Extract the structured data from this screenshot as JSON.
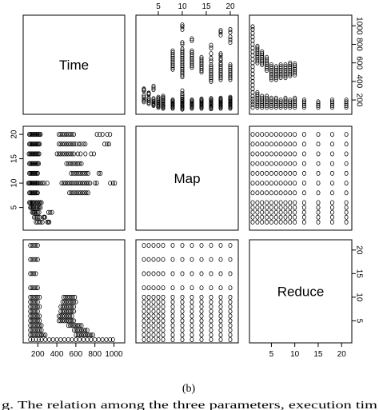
{
  "caption": "(b)",
  "footer_fragment": "g.   The relation among the three parameters, execution tim",
  "chart_data": {
    "type": "scatter",
    "variables": [
      "Time",
      "Map",
      "Reduce"
    ],
    "ranges": {
      "Time": [
        80,
        1080
      ],
      "Map": [
        1,
        21
      ],
      "Reduce": [
        1,
        21.5
      ]
    },
    "ticks": {
      "Time": [
        200,
        400,
        600,
        800,
        1000
      ],
      "Map": [
        5,
        10,
        15,
        20
      ],
      "Reduce": [
        5,
        10,
        15,
        20
      ]
    },
    "tick_labels": {
      "top": [
        "5",
        "10",
        "15",
        "20"
      ],
      "right_top": [
        "200",
        "400",
        "600",
        "800",
        "1000"
      ],
      "left_middle": [
        "5",
        "10",
        "15",
        "20"
      ],
      "bottom": [
        "200",
        "400",
        "600",
        "800",
        "1000"
      ],
      "bottom_right": [
        "5",
        "10",
        "15",
        "20"
      ],
      "right_bottom": [
        "5",
        "10",
        "15",
        "20"
      ]
    },
    "map_levels": [
      2,
      3,
      4,
      5,
      6,
      8,
      10,
      12,
      14,
      16,
      18,
      20
    ],
    "reduce_levels": [
      1,
      2,
      3,
      4,
      5,
      6,
      7,
      8,
      9,
      10,
      12,
      15,
      18,
      21
    ],
    "observations": [
      {
        "map": 2,
        "time": [
          180,
          195,
          210,
          230,
          250,
          300,
          310,
          320
        ]
      },
      {
        "map": 3,
        "time": [
          160,
          175,
          190,
          205,
          220,
          260,
          270,
          275
        ]
      },
      {
        "map": 4,
        "time": [
          140,
          150,
          160,
          170,
          185,
          200,
          215,
          310,
          330,
          350
        ]
      },
      {
        "map": 5,
        "time": [
          120,
          130,
          140,
          150,
          160,
          175,
          190,
          205,
          215,
          230
        ]
      },
      {
        "map": 6,
        "time": [
          110,
          120,
          130,
          140,
          150,
          160,
          175,
          190,
          200,
          215,
          225,
          240
        ]
      },
      {
        "map": 8,
        "time": [
          110,
          120,
          130,
          140,
          150,
          160,
          170,
          180,
          190,
          200,
          530,
          550,
          570,
          590,
          610,
          630,
          650,
          670,
          690,
          710,
          730
        ]
      },
      {
        "map": 10,
        "time": [
          100,
          110,
          120,
          130,
          140,
          150,
          160,
          170,
          180,
          190,
          200,
          210,
          230,
          250,
          270,
          300,
          450,
          470,
          490,
          510,
          530,
          550,
          570,
          590,
          610,
          630,
          650,
          670,
          690,
          710,
          730,
          750,
          800,
          820,
          960,
          990,
          1010
        ]
      },
      {
        "map": 12,
        "time": [
          110,
          120,
          130,
          140,
          150,
          160,
          170,
          180,
          190,
          200,
          550,
          570,
          590,
          610,
          630,
          650,
          670,
          690,
          710,
          730,
          840,
          860
        ]
      },
      {
        "map": 14,
        "time": [
          110,
          120,
          130,
          140,
          150,
          160,
          170,
          180,
          190,
          200,
          210,
          500,
          520,
          540,
          560,
          580,
          600,
          620,
          640,
          660
        ]
      },
      {
        "map": 16,
        "time": [
          105,
          115,
          125,
          135,
          145,
          155,
          165,
          175,
          185,
          195,
          205,
          215,
          400,
          420,
          440,
          460,
          480,
          500,
          520,
          540,
          560,
          580,
          620,
          650,
          700,
          760,
          790
        ]
      },
      {
        "map": 18,
        "time": [
          110,
          120,
          130,
          140,
          150,
          160,
          170,
          180,
          190,
          200,
          210,
          220,
          420,
          440,
          460,
          480,
          500,
          520,
          540,
          560,
          580,
          600,
          630,
          650,
          680,
          700,
          900,
          930,
          950
        ]
      },
      {
        "map": 20,
        "time": [
          110,
          120,
          130,
          140,
          150,
          160,
          170,
          180,
          190,
          200,
          210,
          220,
          230,
          420,
          440,
          460,
          480,
          500,
          520,
          540,
          560,
          580,
          820,
          850,
          880,
          930,
          960
        ]
      }
    ],
    "reduce_observations": [
      {
        "reduce": 1,
        "time": [
          120,
          150,
          180,
          210,
          240,
          280,
          320,
          360,
          400,
          440,
          480,
          520,
          560,
          600,
          640,
          680,
          720,
          760,
          800,
          840,
          880,
          920,
          960,
          990
        ]
      },
      {
        "reduce": 2,
        "time": [
          120,
          140,
          160,
          180,
          200,
          220,
          240,
          260,
          280,
          600,
          620,
          640,
          660,
          680,
          700,
          720,
          740,
          760,
          780
        ]
      },
      {
        "reduce": 3,
        "time": [
          120,
          140,
          160,
          180,
          200,
          220,
          240,
          580,
          600,
          620,
          640,
          660,
          680,
          700,
          720
        ]
      },
      {
        "reduce": 4,
        "time": [
          120,
          140,
          160,
          180,
          200,
          220,
          240,
          520,
          540,
          560,
          580,
          600,
          620,
          640,
          660
        ]
      },
      {
        "reduce": 5,
        "time": [
          120,
          140,
          160,
          180,
          200,
          220,
          420,
          440,
          460,
          480,
          500,
          520,
          540,
          560,
          580
        ]
      },
      {
        "reduce": 6,
        "time": [
          120,
          140,
          160,
          180,
          200,
          220,
          420,
          440,
          460,
          480,
          500,
          520,
          540,
          560
        ]
      },
      {
        "reduce": 7,
        "time": [
          120,
          140,
          160,
          180,
          200,
          440,
          460,
          480,
          500,
          520,
          540,
          560,
          580
        ]
      },
      {
        "reduce": 8,
        "time": [
          120,
          140,
          160,
          180,
          200,
          220,
          440,
          460,
          480,
          500,
          520,
          540,
          560,
          580
        ]
      },
      {
        "reduce": 9,
        "time": [
          120,
          140,
          160,
          180,
          200,
          460,
          480,
          500,
          520,
          540,
          560,
          580,
          600
        ]
      },
      {
        "reduce": 10,
        "time": [
          120,
          140,
          160,
          180,
          200,
          220,
          470,
          490,
          510,
          530,
          550,
          570,
          590
        ]
      },
      {
        "reduce": 12,
        "time": [
          120,
          140,
          160,
          180,
          200
        ]
      },
      {
        "reduce": 15,
        "time": [
          120,
          140,
          160,
          180
        ]
      },
      {
        "reduce": 18,
        "time": [
          120,
          140,
          160,
          180,
          200
        ]
      },
      {
        "reduce": 21,
        "time": [
          120,
          140,
          160,
          180,
          200
        ]
      }
    ]
  }
}
